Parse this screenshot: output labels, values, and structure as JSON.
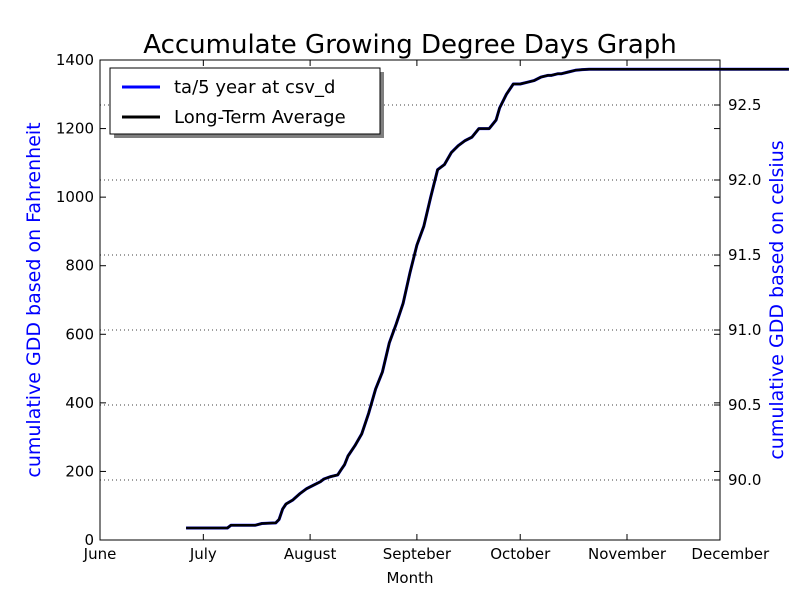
{
  "chart_data": {
    "type": "line",
    "title": "Accumulate Growing Degree Days Graph",
    "xlabel": "Month",
    "ylabel_left": "cumulative GDD based on Fahrenheit",
    "ylabel_right": "cumulative GDD based on celsius",
    "ylim_left": [
      0,
      1400
    ],
    "ylim_right": [
      89.6,
      92.8
    ],
    "xlim": [
      0,
      180
    ],
    "x_ticks": [
      {
        "label": "June",
        "pos": 0
      },
      {
        "label": "July",
        "pos": 30
      },
      {
        "label": "August",
        "pos": 61
      },
      {
        "label": "Septeber",
        "pos": 92
      },
      {
        "label": "October",
        "pos": 122
      },
      {
        "label": "November",
        "pos": 153
      },
      {
        "label": "December",
        "pos": 183
      }
    ],
    "y_ticks_left": [
      0,
      200,
      400,
      600,
      800,
      1000,
      1200,
      1400
    ],
    "y_ticks_right": [
      "90.0",
      "90.5",
      "91.0",
      "91.5",
      "92.0",
      "92.5"
    ],
    "y_ticks_right_values": [
      90.0,
      90.5,
      91.0,
      91.5,
      92.0,
      92.5
    ],
    "grid": "dotted horizontal at right-axis ticks",
    "legend_position": "top-left",
    "colors": {
      "series1": "#0000ff",
      "series2": "#000000",
      "ylabel": "#0000ff"
    },
    "series": [
      {
        "name": "ta/5 year at csv_d",
        "color": "#0000ff",
        "x": [
          25,
          37,
          38,
          45,
          47,
          51,
          52,
          53,
          54,
          56,
          58,
          60,
          62,
          64,
          65,
          67,
          69,
          70,
          71,
          72,
          74,
          76,
          78,
          80,
          82,
          84,
          86,
          88,
          90,
          92,
          94,
          96,
          98,
          100,
          102,
          104,
          106,
          108,
          110,
          112,
          113,
          115,
          116,
          118,
          120,
          122,
          124,
          126,
          128,
          130,
          131,
          133,
          134,
          136,
          138,
          140,
          142,
          145,
          148,
          152,
          155,
          160,
          165,
          170,
          175,
          180,
          190,
          200
        ],
        "y": [
          35,
          35,
          43,
          43,
          48,
          50,
          60,
          90,
          105,
          117,
          135,
          150,
          160,
          170,
          178,
          185,
          190,
          205,
          220,
          245,
          275,
          310,
          370,
          440,
          490,
          575,
          630,
          690,
          780,
          860,
          915,
          1000,
          1080,
          1095,
          1130,
          1150,
          1165,
          1175,
          1200,
          1200,
          1200,
          1225,
          1260,
          1300,
          1330,
          1330,
          1335,
          1340,
          1350,
          1355,
          1355,
          1360,
          1360,
          1365,
          1370,
          1372,
          1373,
          1373,
          1373,
          1373,
          1373,
          1373,
          1373,
          1373,
          1373,
          1373,
          1373,
          1373
        ]
      },
      {
        "name": "Long-Term Average",
        "color": "#000000",
        "x": [
          25,
          37,
          38,
          45,
          47,
          51,
          52,
          53,
          54,
          56,
          58,
          60,
          62,
          64,
          65,
          67,
          69,
          70,
          71,
          72,
          74,
          76,
          78,
          80,
          82,
          84,
          86,
          88,
          90,
          92,
          94,
          96,
          98,
          100,
          102,
          104,
          106,
          108,
          110,
          112,
          113,
          115,
          116,
          118,
          120,
          122,
          124,
          126,
          128,
          130,
          131,
          133,
          134,
          136,
          138,
          140,
          142,
          145,
          148,
          152,
          155,
          160,
          165,
          170,
          175,
          180,
          190,
          200
        ],
        "y": [
          35,
          35,
          43,
          43,
          48,
          50,
          60,
          90,
          105,
          117,
          135,
          150,
          160,
          170,
          178,
          185,
          190,
          205,
          220,
          245,
          275,
          310,
          370,
          440,
          490,
          575,
          630,
          690,
          780,
          860,
          915,
          1000,
          1080,
          1095,
          1130,
          1150,
          1165,
          1175,
          1200,
          1200,
          1200,
          1225,
          1260,
          1300,
          1330,
          1330,
          1335,
          1340,
          1350,
          1355,
          1355,
          1360,
          1360,
          1365,
          1370,
          1372,
          1373,
          1373,
          1373,
          1373,
          1373,
          1373,
          1373,
          1373,
          1373,
          1373,
          1373,
          1373
        ]
      }
    ]
  }
}
